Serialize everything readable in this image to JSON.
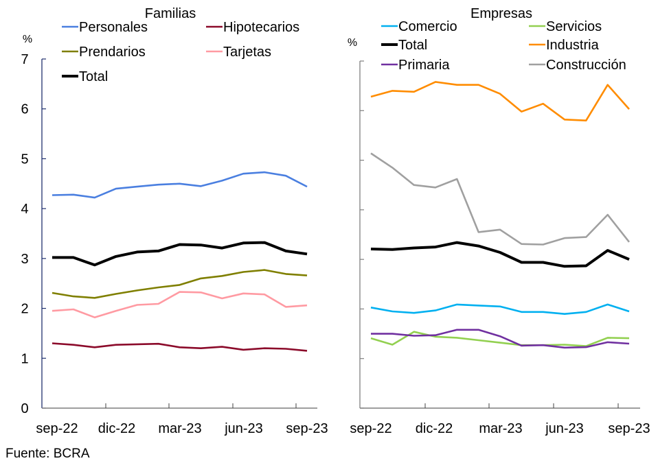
{
  "source": "Fuente: BCRA",
  "chart_data": [
    {
      "type": "line",
      "title": "Familias",
      "ylabel": "%",
      "xlabel": "",
      "ylim": [
        0,
        7
      ],
      "yticks": [
        "0",
        "1",
        "2",
        "3",
        "4",
        "5",
        "6",
        "7"
      ],
      "x": [
        "sep-22",
        "oct-22",
        "nov-22",
        "dic-22",
        "ene-23",
        "feb-23",
        "mar-23",
        "abr-23",
        "may-23",
        "jun-23",
        "jul-23",
        "ago-23",
        "sep-23"
      ],
      "xtick_labels": [
        "sep-22",
        "dic-22",
        "mar-23",
        "jun-23",
        "sep-23"
      ],
      "grid": false,
      "legend_placement": "top",
      "series": [
        {
          "name": "Personales",
          "color": "#4a7fe0",
          "values": [
            4.27,
            4.28,
            4.22,
            4.4,
            4.44,
            4.48,
            4.5,
            4.45,
            4.56,
            4.7,
            4.73,
            4.66,
            4.44
          ]
        },
        {
          "name": "Hipotecarios",
          "color": "#8b0a2a",
          "values": [
            1.3,
            1.27,
            1.22,
            1.27,
            1.28,
            1.29,
            1.22,
            1.2,
            1.23,
            1.17,
            1.2,
            1.19,
            1.15
          ]
        },
        {
          "name": "Prendarios",
          "color": "#7f7f00",
          "values": [
            2.31,
            2.24,
            2.21,
            2.29,
            2.36,
            2.42,
            2.47,
            2.6,
            2.65,
            2.73,
            2.77,
            2.69,
            2.66
          ]
        },
        {
          "name": "Tarjetas",
          "color": "#ff9aa2",
          "values": [
            1.95,
            1.98,
            1.82,
            1.95,
            2.07,
            2.09,
            2.33,
            2.32,
            2.2,
            2.3,
            2.28,
            2.03,
            2.06
          ]
        },
        {
          "name": "Total",
          "color": "#000000",
          "bold": true,
          "values": [
            3.02,
            3.02,
            2.87,
            3.04,
            3.13,
            3.15,
            3.28,
            3.27,
            3.21,
            3.31,
            3.32,
            3.15,
            3.09
          ]
        }
      ]
    },
    {
      "type": "line",
      "title": "Empresas",
      "ylabel": "%",
      "xlabel": "",
      "ylim": [
        0,
        7
      ],
      "yticks": [],
      "x": [
        "sep-22",
        "oct-22",
        "nov-22",
        "dic-22",
        "ene-23",
        "feb-23",
        "mar-23",
        "abr-23",
        "may-23",
        "jun-23",
        "jul-23",
        "ago-23",
        "sep-23"
      ],
      "xtick_labels": [
        "sep-22",
        "dic-22",
        "mar-23",
        "jun-23",
        "sep-23"
      ],
      "grid": false,
      "legend_placement": "top",
      "series": [
        {
          "name": "Comercio",
          "color": "#00b0f0",
          "values": [
            2.03,
            1.95,
            1.92,
            1.97,
            2.09,
            2.07,
            2.05,
            1.94,
            1.94,
            1.9,
            1.94,
            2.09,
            1.95
          ]
        },
        {
          "name": "Servicios",
          "color": "#92d050",
          "values": [
            1.41,
            1.28,
            1.54,
            1.44,
            1.42,
            1.37,
            1.32,
            1.27,
            1.27,
            1.28,
            1.25,
            1.42,
            1.41
          ]
        },
        {
          "name": "Total",
          "color": "#000000",
          "bold": true,
          "values": [
            3.21,
            3.2,
            3.23,
            3.25,
            3.34,
            3.27,
            3.14,
            2.94,
            2.94,
            2.86,
            2.87,
            3.18,
            3.0
          ]
        },
        {
          "name": "Industria",
          "color": "#ff8c00",
          "values": [
            6.28,
            6.4,
            6.38,
            6.58,
            6.52,
            6.52,
            6.34,
            5.98,
            6.14,
            5.82,
            5.8,
            6.52,
            6.03
          ]
        },
        {
          "name": "Primaria",
          "color": "#7030a0",
          "values": [
            1.5,
            1.5,
            1.46,
            1.47,
            1.58,
            1.58,
            1.45,
            1.26,
            1.27,
            1.22,
            1.23,
            1.33,
            1.3
          ]
        },
        {
          "name": "Construcción",
          "color": "#a0a0a0",
          "values": [
            5.14,
            4.85,
            4.5,
            4.45,
            4.62,
            3.55,
            3.6,
            3.31,
            3.3,
            3.43,
            3.45,
            3.9,
            3.35
          ]
        }
      ]
    }
  ]
}
